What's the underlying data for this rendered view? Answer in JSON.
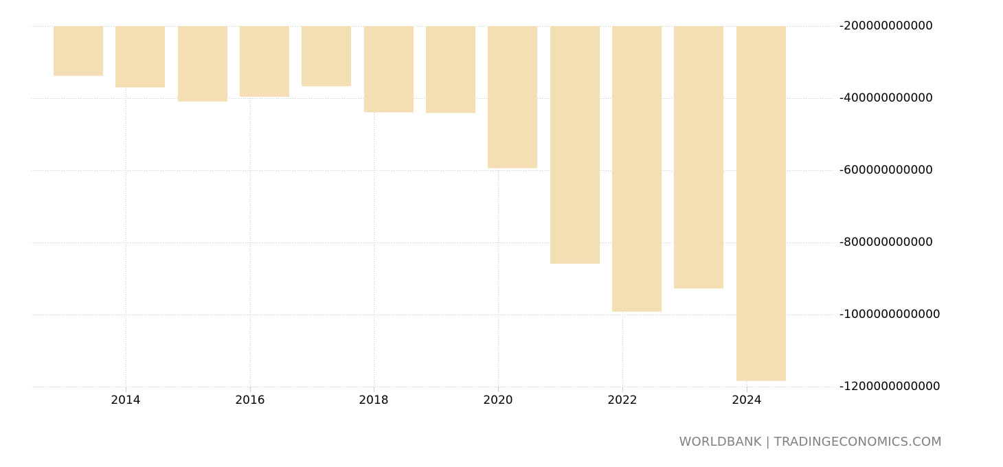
{
  "chart_data": {
    "type": "bar",
    "title": "",
    "xlabel": "",
    "ylabel": "",
    "categories": [
      "2013",
      "2014",
      "2015",
      "2016",
      "2017",
      "2018",
      "2019",
      "2020",
      "2021",
      "2022",
      "2023",
      "2024"
    ],
    "values": [
      -338000000000,
      -370000000000,
      -409000000000,
      -396000000000,
      -367000000000,
      -439000000000,
      -441000000000,
      -594000000000,
      -859000000000,
      -992000000000,
      -928000000000,
      -1184000000000
    ],
    "bar_color": "#f4deb4",
    "ylim": [
      -1200000000000,
      -200000000000
    ],
    "y_ticks": [
      "-200000000000",
      "-400000000000",
      "-600000000000",
      "-800000000000",
      "-1000000000000",
      "-1200000000000"
    ],
    "x_ticks": [
      "2014",
      "2016",
      "2018",
      "2020",
      "2022",
      "2024"
    ],
    "grid": true,
    "y_axis_position": "right",
    "legend": null
  },
  "footer": {
    "source_label": "WORLDBANK | TRADINGECONOMICS.COM"
  }
}
